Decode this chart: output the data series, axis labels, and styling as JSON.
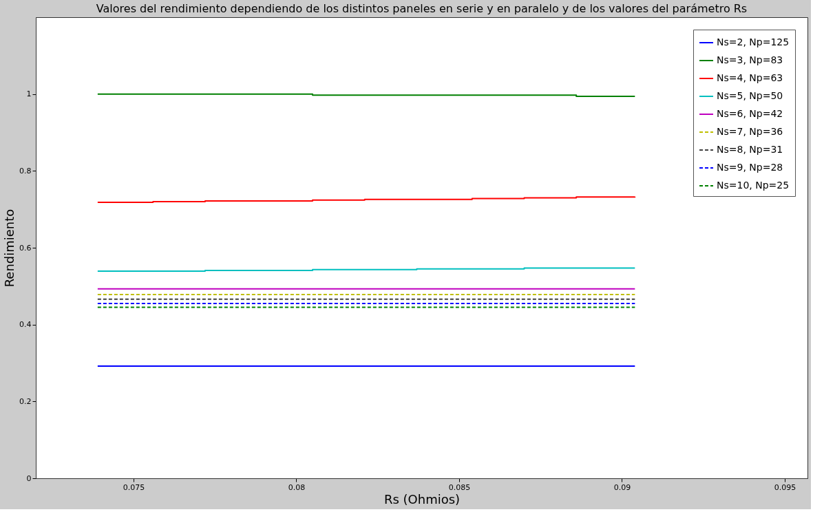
{
  "chart_data": {
    "type": "step",
    "title": "Valores del rendimiento dependiendo de los distintos paneles en serie y en paralelo y de los valores del parámetro Rs",
    "xlabel": "Rs (Ohmios)",
    "ylabel": "Rendimiento",
    "x": [
      0.0739,
      0.0756,
      0.0772,
      0.0788,
      0.0805,
      0.0821,
      0.0837,
      0.0854,
      0.087,
      0.0886,
      0.0904
    ],
    "xlim": [
      0.072,
      0.0957
    ],
    "xticks": [
      0.075,
      0.08,
      0.085,
      0.09,
      0.095
    ],
    "ylim": [
      0,
      1.2
    ],
    "yticks": [
      0,
      0.2,
      0.4,
      0.6,
      0.8,
      1
    ],
    "grid": false,
    "legend": "top right",
    "series": [
      {
        "name": "Ns=2, Np=125",
        "color": "#0000ff",
        "line_style": "solid",
        "values": [
          0.292,
          0.292,
          0.292,
          0.292,
          0.292,
          0.292,
          0.292,
          0.292,
          0.292,
          0.292,
          0.292
        ]
      },
      {
        "name": "Ns=3, Np=83",
        "color": "#008000",
        "line_style": "solid",
        "values": [
          1.0,
          1.0,
          1.0,
          1.0,
          0.997,
          0.997,
          0.997,
          0.997,
          0.997,
          0.994,
          0.994
        ]
      },
      {
        "name": "Ns=4, Np=63",
        "color": "#ff0000",
        "line_style": "solid",
        "values": [
          0.718,
          0.72,
          0.722,
          0.722,
          0.724,
          0.726,
          0.726,
          0.728,
          0.73,
          0.732,
          0.733
        ]
      },
      {
        "name": "Ns=5, Np=50",
        "color": "#00bfbf",
        "line_style": "solid",
        "values": [
          0.539,
          0.539,
          0.541,
          0.541,
          0.543,
          0.543,
          0.545,
          0.545,
          0.547,
          0.547,
          0.547
        ]
      },
      {
        "name": "Ns=6, Np=42",
        "color": "#bf00bf",
        "line_style": "solid",
        "values": [
          0.493,
          0.493,
          0.493,
          0.493,
          0.493,
          0.493,
          0.493,
          0.493,
          0.493,
          0.493,
          0.493
        ]
      },
      {
        "name": "Ns=7, Np=36",
        "color": "#bfbf00",
        "line_style": "dashed",
        "values": [
          0.478,
          0.478,
          0.478,
          0.478,
          0.478,
          0.478,
          0.478,
          0.478,
          0.478,
          0.478,
          0.478
        ]
      },
      {
        "name": "Ns=8, Np=31",
        "color": "#404040",
        "line_style": "dashed",
        "values": [
          0.466,
          0.466,
          0.466,
          0.466,
          0.466,
          0.466,
          0.466,
          0.466,
          0.466,
          0.466,
          0.466
        ]
      },
      {
        "name": "Ns=9, Np=28",
        "color": "#0000ff",
        "line_style": "dashed",
        "values": [
          0.455,
          0.455,
          0.455,
          0.455,
          0.455,
          0.455,
          0.455,
          0.455,
          0.455,
          0.455,
          0.455
        ]
      },
      {
        "name": "Ns=10, Np=25",
        "color": "#008000",
        "line_style": "dashed",
        "values": [
          0.445,
          0.445,
          0.445,
          0.445,
          0.445,
          0.445,
          0.445,
          0.445,
          0.445,
          0.445,
          0.445
        ]
      }
    ]
  }
}
